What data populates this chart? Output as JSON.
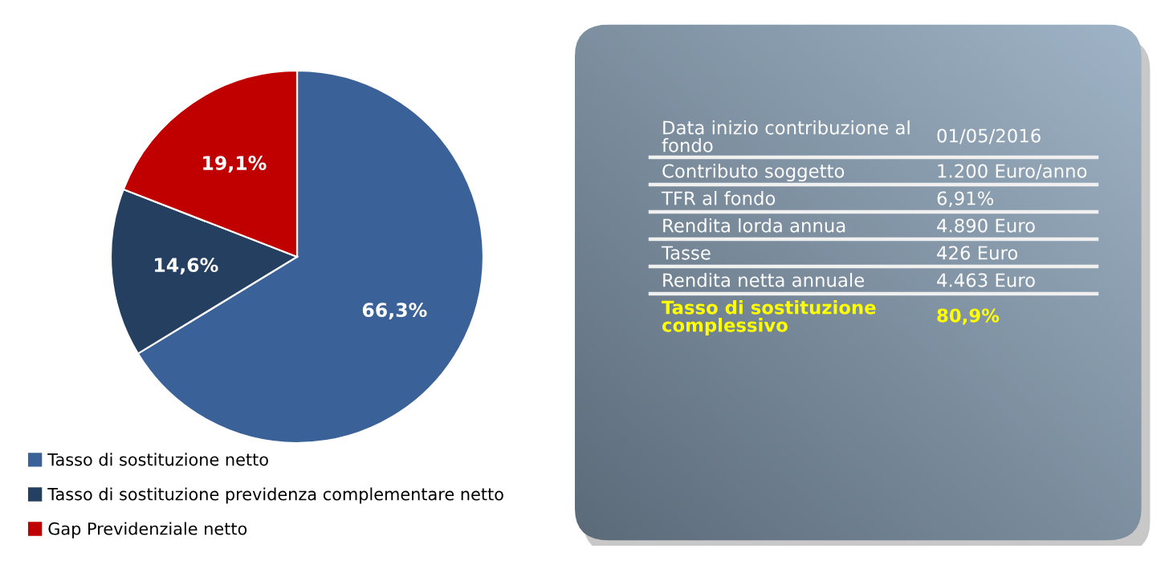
{
  "chart_data": [
    {
      "type": "pie",
      "categories": [
        "Tasso di sostituzione netto",
        "Tasso di sostituzione previdenza complementare netto",
        "Gap Previdenziale netto"
      ],
      "values": [
        66.3,
        14.6,
        19.1
      ],
      "colors": [
        "#3a6299",
        "#243f60",
        "#c00000"
      ],
      "value_labels": [
        "66,3%",
        "14,6%",
        "19,1%"
      ],
      "legend": "bottom left"
    },
    {
      "type": "other",
      "annotations": [
        "Data inizio contribuzione al fondo",
        "01/05/2016",
        "Contributo soggetto",
        "1.200 Euro/anno",
        "TFR al fondo",
        "6,91%",
        "Rendita lorda annua",
        "4.890 Euro",
        "Tasse",
        "426 Euro",
        "Rendita netta annuale",
        "4.463 Euro",
        "Tasso di sostituzione complessivo",
        "80,9%"
      ]
    }
  ]
}
